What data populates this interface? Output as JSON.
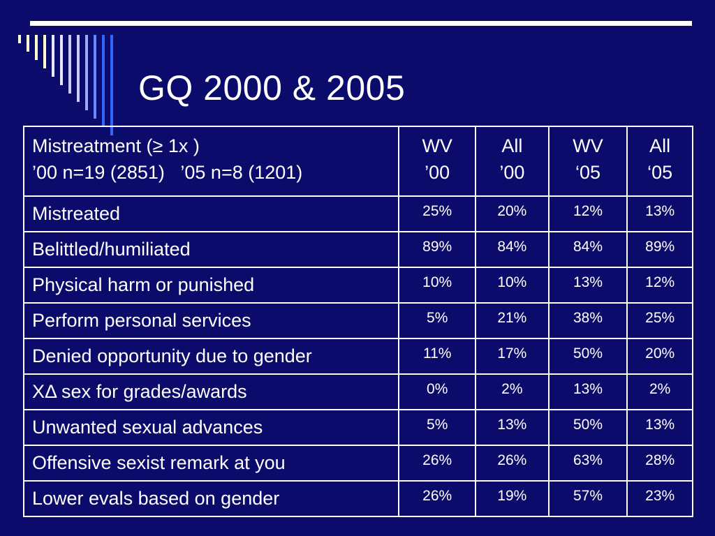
{
  "slide": {
    "title": "GQ 2000 & 2005"
  },
  "colors": {
    "background": "#0b0b6b",
    "text": "#ffffff",
    "stripe_light": "#ffffcc",
    "stripe_mid": "#ccccff",
    "stripe_blue": "#3366ff"
  },
  "table": {
    "header": {
      "label_line1": "Mistreatment (≥ 1x )",
      "label_line2": "’00 n=19 (2851)   ’05 n=8 (1201)",
      "columns": [
        {
          "line1": "WV",
          "line2": "’00"
        },
        {
          "line1": "All",
          "line2": "’00"
        },
        {
          "line1": "WV",
          "line2": "‘05"
        },
        {
          "line1": "All",
          "line2": "‘05"
        }
      ]
    },
    "rows": [
      {
        "label": "Mistreated",
        "values": [
          "25%",
          "20%",
          "12%",
          "13%"
        ]
      },
      {
        "label": "Belittled/humiliated",
        "values": [
          "89%",
          "84%",
          "84%",
          "89%"
        ]
      },
      {
        "label": "Physical harm or punished",
        "values": [
          "10%",
          "10%",
          "13%",
          "12%"
        ]
      },
      {
        "label": "Perform personal services",
        "values": [
          "5%",
          "21%",
          "38%",
          "25%"
        ]
      },
      {
        "label": "Denied opportunity due to gender",
        "values": [
          "11%",
          "17%",
          "50%",
          "20%"
        ]
      },
      {
        "label": "XΔ sex for grades/awards",
        "values": [
          "0%",
          "2%",
          "13%",
          "2%"
        ]
      },
      {
        "label": "Unwanted sexual advances",
        "values": [
          "5%",
          "13%",
          "50%",
          "13%"
        ]
      },
      {
        "label": "Offensive sexist remark at you",
        "values": [
          "26%",
          "26%",
          "63%",
          "28%"
        ]
      },
      {
        "label": "Lower evals based on gender",
        "values": [
          "26%",
          "19%",
          "57%",
          "23%"
        ]
      }
    ]
  }
}
